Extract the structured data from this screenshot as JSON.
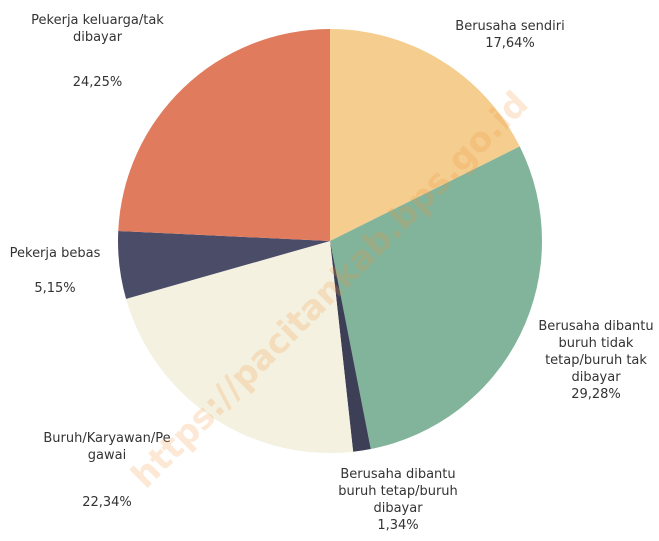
{
  "chart_data": {
    "type": "pie",
    "categories": [
      "Berusaha sendiri",
      "Berusaha dibantu buruh tidak tetap/buruh tak dibayar",
      "Berusaha dibantu buruh tetap/buruh dibayar",
      "Buruh/Karyawan/Pegawai",
      "Pekerja bebas",
      "Pekerja keluarga/tak dibayar"
    ],
    "values": [
      17.64,
      29.28,
      1.34,
      22.34,
      5.15,
      24.25
    ],
    "value_labels": [
      "17,64%",
      "29,28%",
      "1,34%",
      "22,34%",
      "5,15%",
      "24,25%"
    ],
    "colors": [
      "#f4cd8f",
      "#82b39b",
      "#3c3f55",
      "#f4f1e0",
      "#4b4c68",
      "#e07b5e"
    ],
    "watermark": "https://pacitankab.bps.go.id"
  }
}
